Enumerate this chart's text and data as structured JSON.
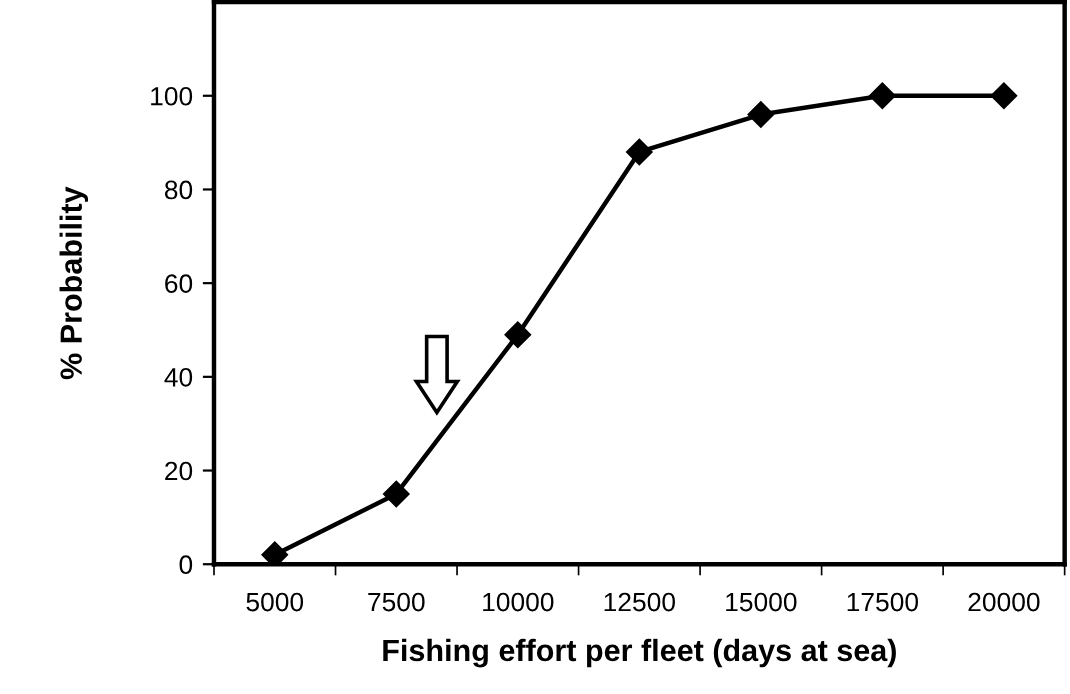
{
  "chart_data": {
    "type": "line",
    "xlabel": "Fishing effort per fleet (days at sea)",
    "ylabel": "% Probability",
    "categories": [
      "5000",
      "7500",
      "10000",
      "12500",
      "15000",
      "17500",
      "20000"
    ],
    "series": [
      {
        "color": "#000000",
        "values": [
          2,
          15,
          49,
          88,
          96,
          100,
          100
        ]
      }
    ],
    "ylim": [
      0,
      120
    ],
    "yticks": [
      0,
      20,
      40,
      60,
      80,
      100
    ],
    "grid": false,
    "legend": false,
    "marker": "diamond",
    "line_style": "solid"
  }
}
